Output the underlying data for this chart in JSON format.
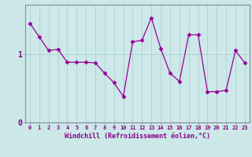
{
  "x": [
    0,
    1,
    2,
    3,
    4,
    5,
    6,
    7,
    8,
    9,
    10,
    11,
    12,
    13,
    14,
    15,
    16,
    17,
    18,
    19,
    20,
    21,
    22,
    23
  ],
  "y": [
    1.45,
    1.25,
    1.05,
    1.07,
    0.88,
    0.88,
    0.88,
    0.87,
    0.72,
    0.58,
    0.38,
    1.18,
    1.2,
    1.53,
    1.08,
    0.72,
    0.6,
    1.28,
    1.28,
    0.45,
    0.45,
    0.47,
    1.05,
    0.87
  ],
  "line_color": "#990099",
  "marker": "D",
  "marker_size": 2.5,
  "bg_color": "#cce8e8",
  "grid_color": "#aacccc",
  "xlabel": "Windchill (Refroidissement éolien,°C)",
  "label_color": "#880088",
  "axis_color": "#888899",
  "xlim": [
    -0.5,
    23.5
  ],
  "ylim": [
    0,
    1.72
  ],
  "yticks": [
    0,
    1.0
  ],
  "ytick_labels": [
    "0",
    "1"
  ]
}
